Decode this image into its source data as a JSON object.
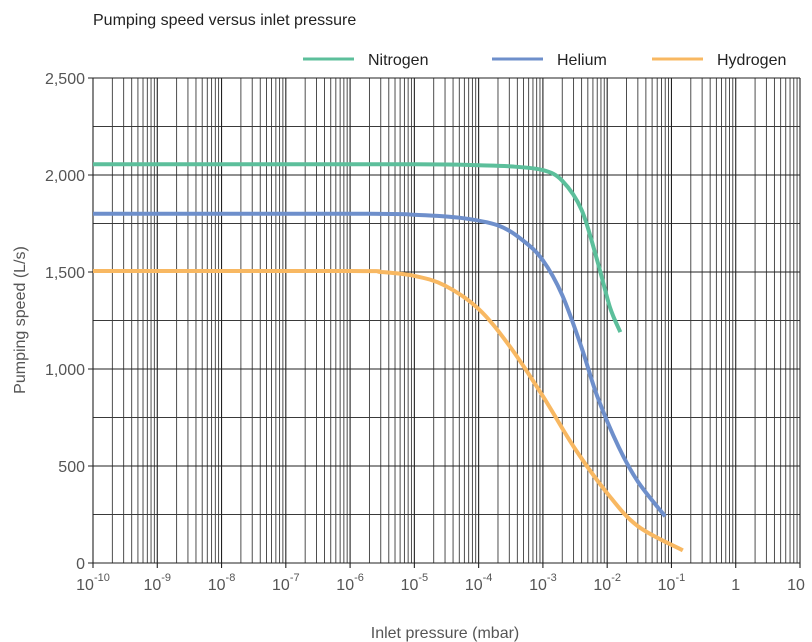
{
  "chart_data": {
    "type": "line",
    "title": "Pumping speed versus inlet pressure",
    "xlabel": "Inlet pressure (mbar)",
    "ylabel": "Pumping speed (L/s)",
    "x_scale": "log",
    "xlim": [
      1e-10,
      10
    ],
    "ylim": [
      0,
      2500
    ],
    "grid": true,
    "legend_position": "top-right",
    "x_ticks": [
      {
        "base": "10",
        "exp": "-10",
        "value": 1e-10
      },
      {
        "base": "10",
        "exp": "-9",
        "value": 1e-09
      },
      {
        "base": "10",
        "exp": "-8",
        "value": 1e-08
      },
      {
        "base": "10",
        "exp": "-7",
        "value": 1e-07
      },
      {
        "base": "10",
        "exp": "-6",
        "value": 1e-06
      },
      {
        "base": "10",
        "exp": "-5",
        "value": 1e-05
      },
      {
        "base": "10",
        "exp": "-4",
        "value": 0.0001
      },
      {
        "base": "10",
        "exp": "-3",
        "value": 0.001
      },
      {
        "base": "10",
        "exp": "-2",
        "value": 0.01
      },
      {
        "base": "10",
        "exp": "-1",
        "value": 0.1
      },
      {
        "base": "1",
        "exp": "",
        "value": 1
      },
      {
        "base": "10",
        "exp": "",
        "value": 10
      }
    ],
    "y_ticks": [
      {
        "label": "0",
        "value": 0
      },
      {
        "label": "500",
        "value": 500
      },
      {
        "label": "1,000",
        "value": 1000
      },
      {
        "label": "1,500",
        "value": 1500
      },
      {
        "label": "2,000",
        "value": 2000
      },
      {
        "label": "2,500",
        "value": 2500
      }
    ],
    "series": [
      {
        "name": "Nitrogen",
        "color": "#5cbf9b",
        "points": [
          [
            1e-10,
            2055
          ],
          [
            1e-05,
            2055
          ],
          [
            0.0001,
            2050
          ],
          [
            0.0003,
            2045
          ],
          [
            0.001,
            2025
          ],
          [
            0.002,
            1970
          ],
          [
            0.004,
            1820
          ],
          [
            0.007,
            1560
          ],
          [
            0.011,
            1320
          ],
          [
            0.016,
            1190
          ]
        ]
      },
      {
        "name": "Helium",
        "color": "#6e8fcb",
        "points": [
          [
            1e-10,
            1800
          ],
          [
            2e-06,
            1800
          ],
          [
            1e-05,
            1795
          ],
          [
            5e-05,
            1780
          ],
          [
            0.0002,
            1740
          ],
          [
            0.0005,
            1660
          ],
          [
            0.001,
            1560
          ],
          [
            0.002,
            1380
          ],
          [
            0.004,
            1110
          ],
          [
            0.007,
            860
          ],
          [
            0.015,
            600
          ],
          [
            0.03,
            420
          ],
          [
            0.08,
            240
          ]
        ]
      },
      {
        "name": "Hydrogen",
        "color": "#f8b862",
        "points": [
          [
            1e-10,
            1505
          ],
          [
            1e-06,
            1505
          ],
          [
            3e-06,
            1500
          ],
          [
            1e-05,
            1480
          ],
          [
            3e-05,
            1430
          ],
          [
            0.0001,
            1310
          ],
          [
            0.0003,
            1120
          ],
          [
            0.001,
            860
          ],
          [
            0.003,
            600
          ],
          [
            0.01,
            360
          ],
          [
            0.03,
            190
          ],
          [
            0.15,
            65
          ]
        ]
      }
    ]
  }
}
